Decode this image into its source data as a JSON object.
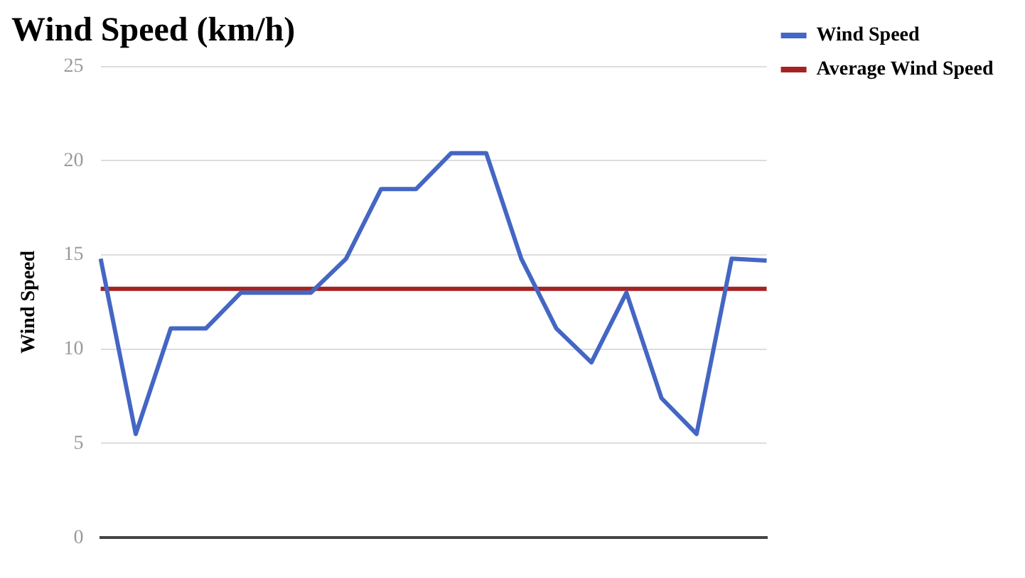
{
  "chart_data": {
    "type": "line",
    "title": "Wind Speed (km/h)",
    "ylabel": "Wind Speed",
    "categories": [
      null,
      null,
      null,
      null,
      null,
      null,
      null,
      null,
      null,
      null,
      null,
      null,
      null,
      null,
      null,
      null,
      null,
      null,
      null,
      null
    ],
    "series": [
      {
        "name": "Wind Speed",
        "color": "#4466c4",
        "values": [
          14.8,
          5.5,
          11.1,
          11.1,
          13,
          13,
          13,
          14.8,
          18.5,
          18.5,
          20.4,
          20.4,
          14.8,
          11.1,
          9.3,
          13,
          7.4,
          5.5,
          14.8,
          14.7
        ]
      },
      {
        "name": "Average Wind Speed",
        "color": "#a52222",
        "values": [
          13.2,
          13.2,
          13.2,
          13.2,
          13.2,
          13.2,
          13.2,
          13.2,
          13.2,
          13.2,
          13.2,
          13.2,
          13.2,
          13.2,
          13.2,
          13.2,
          13.2,
          13.2,
          13.2,
          13.2
        ]
      }
    ],
    "ylim": [
      0,
      25
    ],
    "yticks": [
      0,
      5,
      10,
      15,
      20,
      25
    ],
    "grid": "y",
    "legend": "top right",
    "marker": "none",
    "line_style": "solid",
    "tick_labels": "y"
  }
}
